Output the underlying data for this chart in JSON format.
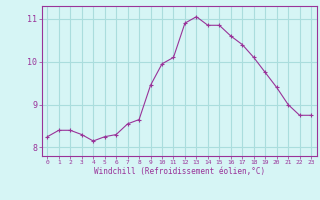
{
  "x": [
    0,
    1,
    2,
    3,
    4,
    5,
    6,
    7,
    8,
    9,
    10,
    11,
    12,
    13,
    14,
    15,
    16,
    17,
    18,
    19,
    20,
    21,
    22,
    23
  ],
  "y": [
    8.25,
    8.4,
    8.4,
    8.3,
    8.15,
    8.25,
    8.3,
    8.55,
    8.65,
    9.45,
    9.95,
    10.1,
    10.9,
    11.05,
    10.85,
    10.85,
    10.6,
    10.4,
    10.1,
    9.75,
    9.4,
    9.0,
    8.75,
    8.75
  ],
  "line_color": "#993399",
  "marker_color": "#993399",
  "bg_color": "#d6f5f5",
  "grid_color": "#aadddd",
  "xlabel": "Windchill (Refroidissement éolien,°C)",
  "ylim": [
    7.8,
    11.3
  ],
  "xlim": [
    -0.5,
    23.5
  ],
  "yticks": [
    8,
    9,
    10,
    11
  ],
  "xticks": [
    0,
    1,
    2,
    3,
    4,
    5,
    6,
    7,
    8,
    9,
    10,
    11,
    12,
    13,
    14,
    15,
    16,
    17,
    18,
    19,
    20,
    21,
    22,
    23
  ],
  "xlabel_color": "#993399",
  "tick_color": "#993399",
  "axis_color": "#993399"
}
